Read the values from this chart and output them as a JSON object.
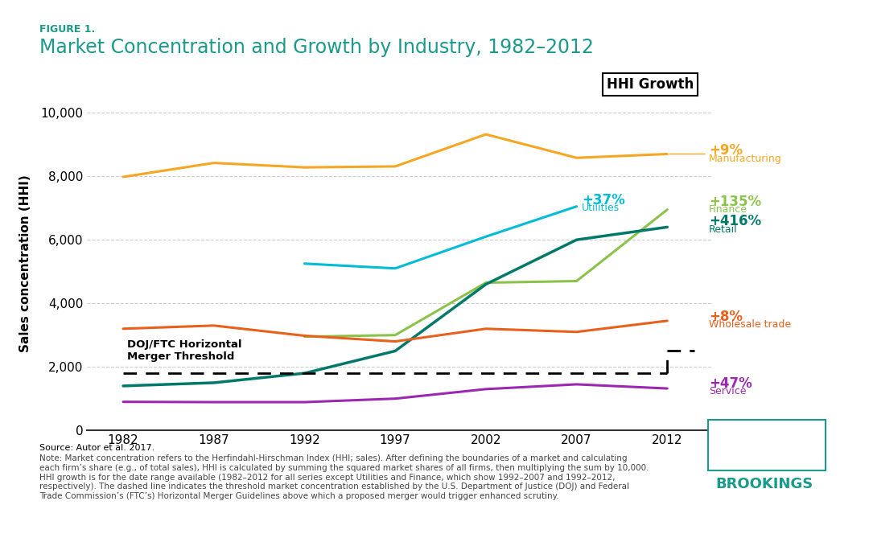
{
  "title": "Market Concentration and Growth by Industry, 1982–2012",
  "figure_label": "FIGURE 1.",
  "ylabel": "Sales concentration (HHI)",
  "background_color": "#ffffff",
  "ylim": [
    0,
    10500
  ],
  "yticks": [
    0,
    2000,
    4000,
    6000,
    8000,
    10000
  ],
  "xticks": [
    1982,
    1987,
    1992,
    1997,
    2002,
    2007,
    2012
  ],
  "hhi_growth_box": "HHI Growth",
  "series": {
    "Manufacturing": {
      "years": [
        1982,
        1987,
        1992,
        1997,
        2002,
        2007,
        2012
      ],
      "values": [
        7980,
        8420,
        8280,
        8310,
        9320,
        8580,
        8700
      ],
      "color": "#f5a623",
      "linewidth": 2.2,
      "label": "+9%\nManufacturing",
      "label_color": "#f5a623",
      "pct": "+9%",
      "name": "Manufacturing"
    },
    "Utilities": {
      "years": [
        1992,
        1997,
        2002,
        2007
      ],
      "values": [
        5250,
        5100,
        6100,
        7050
      ],
      "color": "#00bcd4",
      "linewidth": 2.2,
      "label": "+37%\nUtilities",
      "label_color": "#00bcd4",
      "pct": "+37%",
      "name": "Utilities"
    },
    "Finance": {
      "years": [
        1992,
        1997,
        2002,
        2007,
        2012
      ],
      "values": [
        2950,
        3000,
        4650,
        4700,
        6950
      ],
      "color": "#8bc34a",
      "linewidth": 2.2,
      "label": "+135%\nFinance",
      "label_color": "#8bc34a",
      "pct": "+135%",
      "name": "Finance"
    },
    "Retail": {
      "years": [
        1982,
        1987,
        1992,
        1997,
        2002,
        2007,
        2012
      ],
      "values": [
        1400,
        1500,
        1800,
        2500,
        4600,
        6000,
        6400
      ],
      "color": "#00796b",
      "linewidth": 2.5,
      "label": "+416%\nRetail",
      "label_color": "#00796b",
      "pct": "+416%",
      "name": "Retail"
    },
    "Wholesale_trade": {
      "years": [
        1982,
        1987,
        1992,
        1997,
        2002,
        2007,
        2012
      ],
      "values": [
        3200,
        3300,
        2980,
        2800,
        3200,
        3100,
        3450
      ],
      "color": "#e8601c",
      "linewidth": 2.2,
      "label": "+8%\nWholesale trade",
      "label_color": "#e8601c",
      "pct": "+8%",
      "name": "Wholesale trade"
    },
    "Service": {
      "years": [
        1982,
        1987,
        1992,
        1997,
        2002,
        2007,
        2012
      ],
      "values": [
        900,
        890,
        890,
        1000,
        1300,
        1450,
        1320
      ],
      "color": "#9c27b0",
      "linewidth": 2.2,
      "label": "+47%\nService",
      "label_color": "#9c27b0",
      "pct": "+47%",
      "name": "Service"
    }
  },
  "doj_threshold": {
    "years_flat": [
      1982,
      2012
    ],
    "value_flat": 1800,
    "years_rise": [
      2012,
      2014
    ],
    "value_rise": [
      1800,
      2500
    ],
    "label": "DOJ/FTC Horizontal\nMerger Threshold"
  },
  "footnote_source": "Source: Autor et al. 2017.",
  "footnote_note": "Note: Market concentration refers to the Herfindahl-Hirschman Index (HHI; sales). After defining the boundaries of a market and calculating\neach firm’s share (e.g., of total sales), HHI is calculated by summing the squared market shares of all firms, then multiplying the sum by 10,000.\nHHI growth is for the date range available (1982–2012 for all series except Utilities and Finance, which show 1992–2007 and 1992–2012,\nrespectively). The dashed line indicates the threshold market concentration established by the U.S. Department of Justice (DOJ) and Federal\nTrade Commission’s (FTC’s) Horizontal Merger Guidelines above which a proposed merger would trigger enhanced scrutiny.",
  "title_color": "#1a9a8a",
  "figure_label_color": "#1a9a8a"
}
